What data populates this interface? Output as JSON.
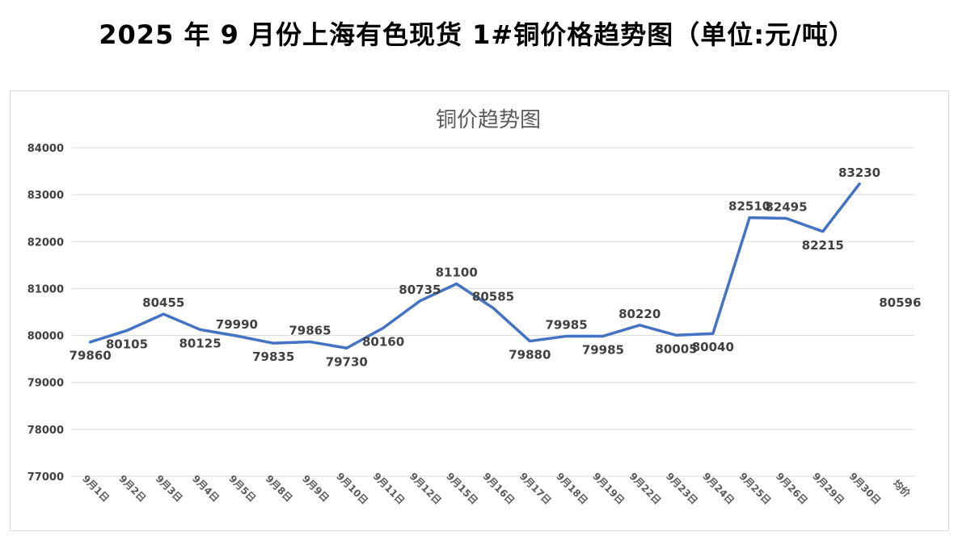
{
  "page": {
    "title": "2025 年 9 月份上海有色现货 1#铜价格趋势图（单位:元/吨）"
  },
  "chart_data": {
    "type": "line",
    "title": "铜价趋势图",
    "categories": [
      "9月1日",
      "9月2日",
      "9月3日",
      "9月4日",
      "9月5日",
      "9月8日",
      "9月9日",
      "9月10日",
      "9月11日",
      "9月12日",
      "9月15日",
      "9月16日",
      "9月17日",
      "9月18日",
      "9月19日",
      "9月22日",
      "9月23日",
      "9月24日",
      "9月25日",
      "9月26日",
      "9月29日",
      "9月30日",
      "均价"
    ],
    "series": [
      {
        "values": [
          79860,
          80105,
          80455,
          80125,
          79990,
          79835,
          79865,
          79730,
          80160,
          80735,
          81100,
          80585,
          79880,
          79985,
          79985,
          80220,
          80005,
          80040,
          82510,
          82495,
          82215,
          83230,
          null
        ],
        "color": "#4472c4"
      }
    ],
    "average": {
      "category": "均价",
      "value": 80596
    },
    "ylim": [
      77000,
      84000
    ],
    "yticks": [
      77000,
      78000,
      79000,
      80000,
      81000,
      82000,
      83000,
      84000
    ],
    "grid": true,
    "legend": "none"
  }
}
